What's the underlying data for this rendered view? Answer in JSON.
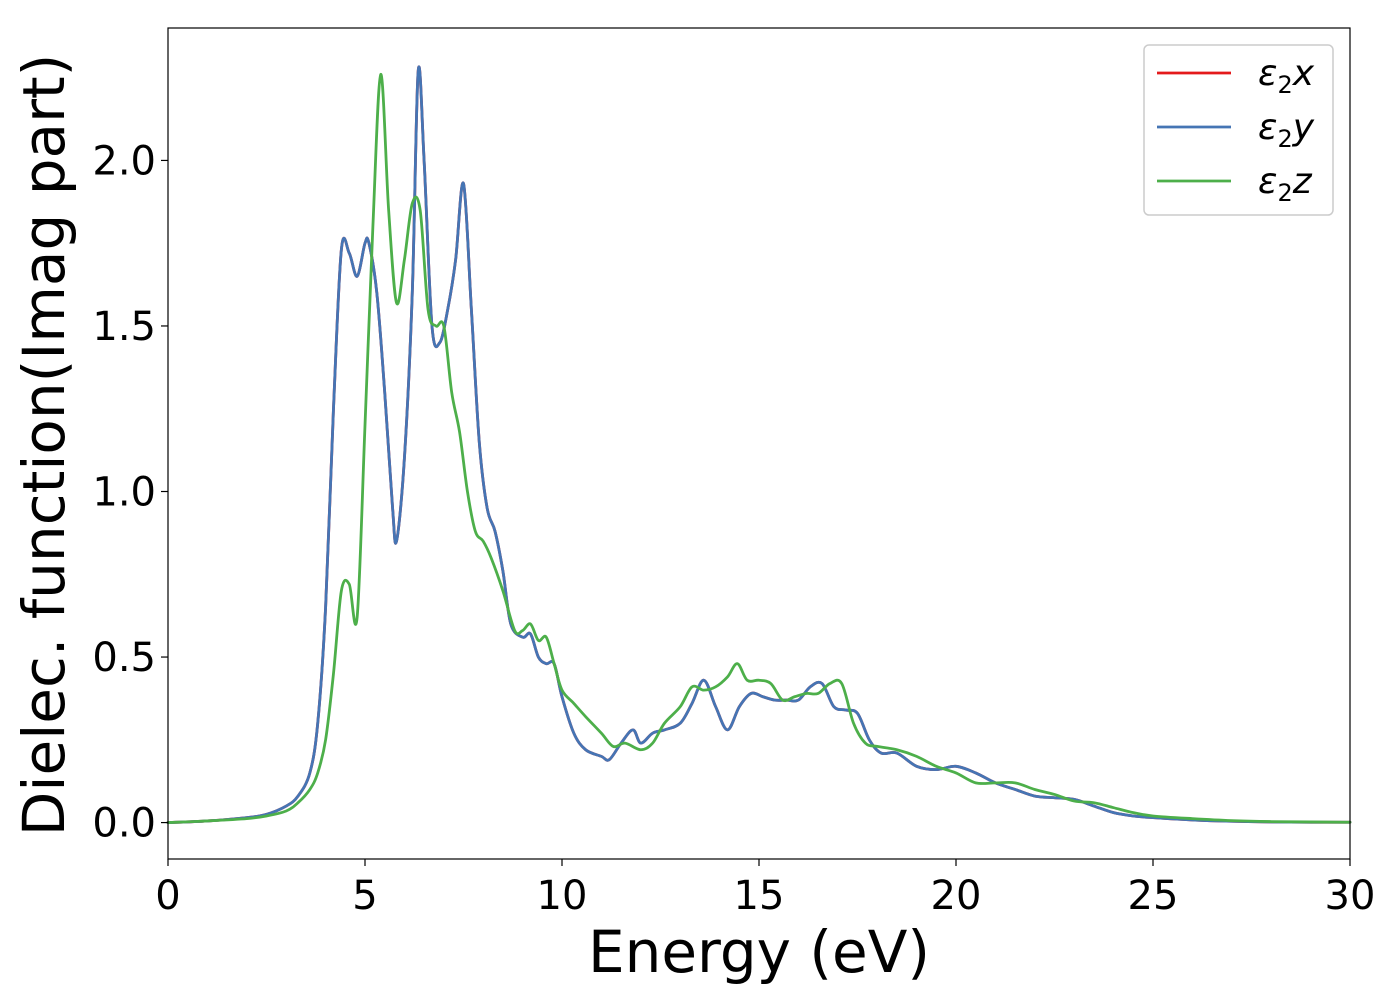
{
  "chart_data": {
    "type": "line",
    "title": "",
    "xlabel": "Energy (eV)",
    "ylabel": "Dielec. function(Imag part)",
    "xlim": [
      0,
      30
    ],
    "ylim": [
      -0.11,
      2.4
    ],
    "xticks": [
      0,
      5,
      10,
      15,
      20,
      25,
      30
    ],
    "xtick_labels": [
      "0",
      "5",
      "10",
      "15",
      "20",
      "25",
      "30"
    ],
    "yticks": [
      0.0,
      0.5,
      1.0,
      1.5,
      2.0
    ],
    "ytick_labels": [
      "0.0",
      "0.5",
      "1.0",
      "1.5",
      "2.0"
    ],
    "grid": false,
    "legend_position": "top-right",
    "series": [
      {
        "name": "ε₂x",
        "legend_base": "ε",
        "legend_sub": "2",
        "legend_var": "x",
        "color": "#e41a1c",
        "x": [
          0,
          1,
          2,
          2.5,
          3,
          3.3,
          3.6,
          3.8,
          4.0,
          4.2,
          4.4,
          4.6,
          4.8,
          5.0,
          5.1,
          5.3,
          5.5,
          5.7,
          5.8,
          6.0,
          6.2,
          6.35,
          6.5,
          6.7,
          6.9,
          7.1,
          7.3,
          7.5,
          7.7,
          7.9,
          8.1,
          8.3,
          8.5,
          8.7,
          9.0,
          9.2,
          9.4,
          9.6,
          9.8,
          10.0,
          10.3,
          10.6,
          11.0,
          11.2,
          11.5,
          11.8,
          12.0,
          12.3,
          12.6,
          13.0,
          13.3,
          13.6,
          13.9,
          14.2,
          14.5,
          14.8,
          15.1,
          15.4,
          15.7,
          16.0,
          16.3,
          16.6,
          16.9,
          17.2,
          17.5,
          17.8,
          18.1,
          18.5,
          19.0,
          19.5,
          20.0,
          20.5,
          21.0,
          21.5,
          22.0,
          22.5,
          23.0,
          23.5,
          24.0,
          24.5,
          25.0,
          26.0,
          27.0,
          28.0,
          29.0,
          30.0
        ],
        "y": [
          0.0,
          0.005,
          0.015,
          0.025,
          0.05,
          0.08,
          0.15,
          0.3,
          0.65,
          1.25,
          1.73,
          1.72,
          1.65,
          1.75,
          1.75,
          1.6,
          1.3,
          0.95,
          0.85,
          1.1,
          1.6,
          2.27,
          2.0,
          1.5,
          1.45,
          1.55,
          1.7,
          1.93,
          1.55,
          1.15,
          0.95,
          0.88,
          0.76,
          0.6,
          0.56,
          0.57,
          0.5,
          0.48,
          0.48,
          0.38,
          0.27,
          0.22,
          0.2,
          0.19,
          0.24,
          0.28,
          0.24,
          0.27,
          0.28,
          0.3,
          0.36,
          0.43,
          0.35,
          0.28,
          0.35,
          0.39,
          0.38,
          0.37,
          0.37,
          0.37,
          0.41,
          0.42,
          0.35,
          0.34,
          0.33,
          0.25,
          0.21,
          0.21,
          0.17,
          0.16,
          0.17,
          0.15,
          0.12,
          0.1,
          0.08,
          0.075,
          0.07,
          0.05,
          0.03,
          0.02,
          0.015,
          0.008,
          0.004,
          0.002,
          0.001,
          0.001
        ]
      },
      {
        "name": "ε₂y",
        "legend_base": "ε",
        "legend_sub": "2",
        "legend_var": "y",
        "color": "#4575b4",
        "x": [
          0,
          1,
          2,
          2.5,
          3,
          3.3,
          3.6,
          3.8,
          4.0,
          4.2,
          4.4,
          4.6,
          4.8,
          5.0,
          5.1,
          5.3,
          5.5,
          5.7,
          5.8,
          6.0,
          6.2,
          6.35,
          6.5,
          6.7,
          6.9,
          7.1,
          7.3,
          7.5,
          7.7,
          7.9,
          8.1,
          8.3,
          8.5,
          8.7,
          9.0,
          9.2,
          9.4,
          9.6,
          9.8,
          10.0,
          10.3,
          10.6,
          11.0,
          11.2,
          11.5,
          11.8,
          12.0,
          12.3,
          12.6,
          13.0,
          13.3,
          13.6,
          13.9,
          14.2,
          14.5,
          14.8,
          15.1,
          15.4,
          15.7,
          16.0,
          16.3,
          16.6,
          16.9,
          17.2,
          17.5,
          17.8,
          18.1,
          18.5,
          19.0,
          19.5,
          20.0,
          20.5,
          21.0,
          21.5,
          22.0,
          22.5,
          23.0,
          23.5,
          24.0,
          24.5,
          25.0,
          26.0,
          27.0,
          28.0,
          29.0,
          30.0
        ],
        "y": [
          0.0,
          0.005,
          0.015,
          0.025,
          0.05,
          0.08,
          0.15,
          0.3,
          0.65,
          1.25,
          1.73,
          1.72,
          1.65,
          1.75,
          1.75,
          1.6,
          1.3,
          0.95,
          0.85,
          1.1,
          1.6,
          2.27,
          2.0,
          1.5,
          1.45,
          1.55,
          1.7,
          1.93,
          1.55,
          1.15,
          0.95,
          0.88,
          0.76,
          0.6,
          0.56,
          0.57,
          0.5,
          0.48,
          0.48,
          0.38,
          0.27,
          0.22,
          0.2,
          0.19,
          0.24,
          0.28,
          0.24,
          0.27,
          0.28,
          0.3,
          0.36,
          0.43,
          0.35,
          0.28,
          0.35,
          0.39,
          0.38,
          0.37,
          0.37,
          0.37,
          0.41,
          0.42,
          0.35,
          0.34,
          0.33,
          0.25,
          0.21,
          0.21,
          0.17,
          0.16,
          0.17,
          0.15,
          0.12,
          0.1,
          0.08,
          0.075,
          0.07,
          0.05,
          0.03,
          0.02,
          0.015,
          0.008,
          0.004,
          0.002,
          0.001,
          0.001
        ]
      },
      {
        "name": "ε₂z",
        "legend_base": "ε",
        "legend_sub": "2",
        "legend_var": "z",
        "color": "#4daf4a",
        "x": [
          0,
          1,
          2,
          2.5,
          3,
          3.3,
          3.6,
          3.8,
          4.0,
          4.2,
          4.4,
          4.6,
          4.8,
          5.0,
          5.2,
          5.4,
          5.6,
          5.8,
          6.0,
          6.2,
          6.4,
          6.6,
          6.8,
          7.0,
          7.2,
          7.4,
          7.6,
          7.8,
          8.0,
          8.2,
          8.5,
          8.8,
          9.0,
          9.2,
          9.4,
          9.6,
          9.8,
          10.0,
          10.3,
          10.6,
          11.0,
          11.3,
          11.6,
          12.0,
          12.3,
          12.6,
          13.0,
          13.3,
          13.6,
          13.9,
          14.2,
          14.45,
          14.7,
          15.0,
          15.3,
          15.6,
          15.9,
          16.2,
          16.5,
          16.8,
          17.1,
          17.4,
          17.7,
          18.0,
          18.5,
          19.0,
          19.5,
          20.0,
          20.5,
          21.0,
          21.5,
          22.0,
          22.5,
          23.0,
          23.5,
          24.0,
          24.5,
          25.0,
          26.0,
          27.0,
          28.0,
          29.0,
          30.0
        ],
        "y": [
          0.0,
          0.005,
          0.012,
          0.02,
          0.035,
          0.06,
          0.1,
          0.15,
          0.25,
          0.45,
          0.7,
          0.72,
          0.62,
          1.2,
          1.8,
          2.26,
          1.85,
          1.57,
          1.7,
          1.87,
          1.85,
          1.55,
          1.5,
          1.5,
          1.3,
          1.18,
          1.0,
          0.88,
          0.85,
          0.8,
          0.7,
          0.58,
          0.58,
          0.6,
          0.55,
          0.56,
          0.48,
          0.4,
          0.36,
          0.32,
          0.27,
          0.23,
          0.24,
          0.22,
          0.24,
          0.3,
          0.35,
          0.41,
          0.4,
          0.41,
          0.44,
          0.48,
          0.43,
          0.43,
          0.42,
          0.37,
          0.38,
          0.39,
          0.39,
          0.42,
          0.42,
          0.3,
          0.24,
          0.23,
          0.22,
          0.2,
          0.17,
          0.15,
          0.12,
          0.12,
          0.12,
          0.1,
          0.085,
          0.065,
          0.06,
          0.045,
          0.03,
          0.02,
          0.012,
          0.006,
          0.003,
          0.002,
          0.001
        ]
      }
    ]
  }
}
